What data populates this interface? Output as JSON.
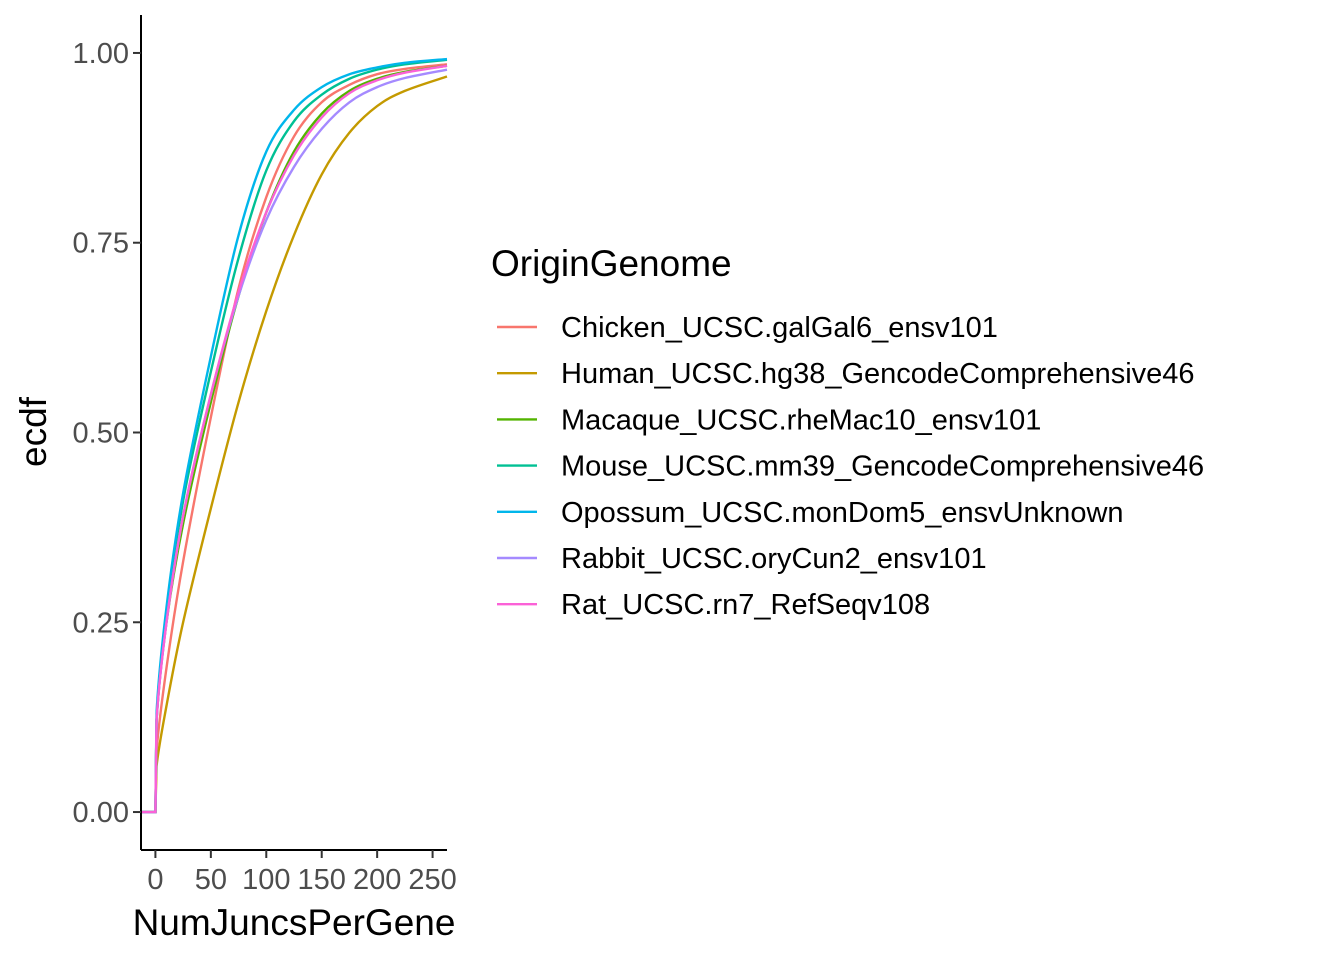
{
  "chart_data": {
    "type": "line",
    "xlabel": "NumJuncsPerGene",
    "ylabel": "ecdf",
    "xlim": [
      -13,
      263
    ],
    "ylim": [
      -0.05,
      1.05
    ],
    "x_ticks": [
      0,
      50,
      100,
      150,
      200,
      250
    ],
    "x_tick_labels": [
      "0",
      "50",
      "100",
      "150",
      "200",
      "250"
    ],
    "y_ticks": [
      0,
      0.25,
      0.5,
      0.75,
      1.0
    ],
    "y_tick_labels": [
      "0.00",
      "0.25",
      "0.50",
      "0.75",
      "1.00"
    ],
    "grid": false,
    "legend": {
      "title": "OriginGenome",
      "position": "right"
    },
    "series": [
      {
        "name": "Chicken_UCSC.galGal6_ensv101",
        "color": "#F8766D",
        "x": [
          -13,
          0,
          1,
          10,
          25,
          50,
          75,
          100,
          125,
          150,
          175,
          200,
          225,
          263
        ],
        "y": [
          0,
          0,
          0.08,
          0.19,
          0.33,
          0.52,
          0.69,
          0.81,
          0.89,
          0.935,
          0.958,
          0.972,
          0.979,
          0.985
        ]
      },
      {
        "name": "Human_UCSC.hg38_GencodeComprehensive46",
        "color": "#C49A00",
        "x": [
          -13,
          0,
          1,
          10,
          25,
          50,
          75,
          100,
          125,
          150,
          175,
          200,
          225,
          263
        ],
        "y": [
          0,
          0,
          0.06,
          0.14,
          0.25,
          0.4,
          0.54,
          0.66,
          0.76,
          0.84,
          0.895,
          0.93,
          0.95,
          0.969
        ]
      },
      {
        "name": "Macaque_UCSC.rheMac10_ensv101",
        "color": "#53B400",
        "x": [
          -13,
          0,
          1,
          10,
          25,
          50,
          75,
          100,
          125,
          150,
          175,
          200,
          225,
          263
        ],
        "y": [
          0,
          0,
          0.12,
          0.25,
          0.38,
          0.54,
          0.68,
          0.79,
          0.87,
          0.92,
          0.95,
          0.966,
          0.975,
          0.983
        ]
      },
      {
        "name": "Mouse_UCSC.mm39_GencodeComprehensive46",
        "color": "#00C094",
        "x": [
          -13,
          0,
          1,
          10,
          25,
          50,
          75,
          100,
          125,
          150,
          175,
          200,
          225,
          263
        ],
        "y": [
          0,
          0,
          0.12,
          0.26,
          0.41,
          0.58,
          0.73,
          0.845,
          0.91,
          0.945,
          0.966,
          0.978,
          0.985,
          0.991
        ]
      },
      {
        "name": "Opossum_UCSC.monDom5_ensvUnknown",
        "color": "#00B6EB",
        "x": [
          -13,
          0,
          1,
          10,
          25,
          50,
          75,
          100,
          125,
          150,
          175,
          200,
          225,
          263
        ],
        "y": [
          0,
          0,
          0.13,
          0.27,
          0.42,
          0.6,
          0.76,
          0.87,
          0.925,
          0.955,
          0.972,
          0.981,
          0.987,
          0.992
        ]
      },
      {
        "name": "Rabbit_UCSC.oryCun2_ensv101",
        "color": "#A58AFF",
        "x": [
          -13,
          0,
          1,
          10,
          25,
          50,
          75,
          100,
          125,
          150,
          175,
          200,
          225,
          263
        ],
        "y": [
          0,
          0,
          0.12,
          0.25,
          0.39,
          0.55,
          0.68,
          0.78,
          0.85,
          0.9,
          0.935,
          0.955,
          0.967,
          0.978
        ]
      },
      {
        "name": "Rat_UCSC.rn7_RefSeqv108",
        "color": "#FB61D7",
        "x": [
          -13,
          0,
          1,
          10,
          25,
          50,
          75,
          100,
          125,
          150,
          175,
          200,
          225,
          263
        ],
        "y": [
          0,
          0,
          0.12,
          0.25,
          0.39,
          0.55,
          0.685,
          0.79,
          0.865,
          0.915,
          0.947,
          0.964,
          0.974,
          0.983
        ]
      }
    ]
  }
}
